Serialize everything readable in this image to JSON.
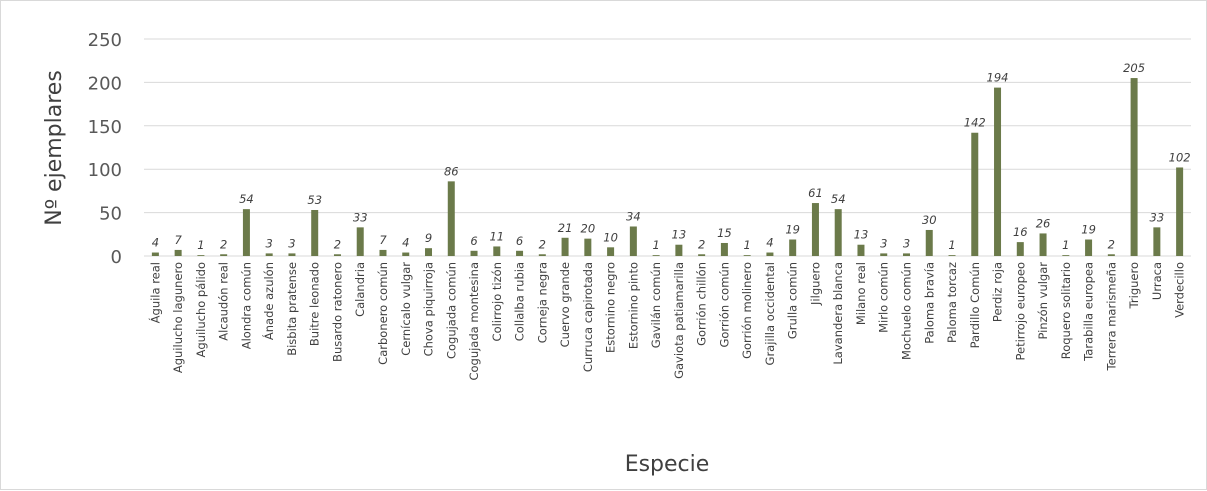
{
  "chart_data": {
    "type": "bar",
    "title": "",
    "xlabel": "Especie",
    "ylabel": "Nº ejemplares",
    "ylim": [
      0,
      250
    ],
    "yticks": [
      0,
      50,
      100,
      150,
      200,
      250
    ],
    "grid": true,
    "legend": "none",
    "bar_color": "#6b7a4a",
    "categories": [
      "Águila real",
      "Aguilucho lagunero",
      "Aguilucho pálido",
      "Alcaudón real",
      "Alondra común",
      "Ánade azulón",
      "Bisbita pratense",
      "Buitre leonado",
      "Busardo ratonero",
      "Calandria",
      "Carbonero común",
      "Cernícalo vulgar",
      "Chova piquirroja",
      "Cogujada común",
      "Cogujada montesina",
      "Colirrojo tizón",
      "Collalba rubia",
      "Corneja negra",
      "Cuervo grande",
      "Curruca capirotada",
      "Estornino negro",
      "Estornino pinto",
      "Gavilán común",
      "Gaviota patiamarilla",
      "Gorrión chillón",
      "Gorrión común",
      "Gorrión molinero",
      "Grajilla occidental",
      "Grulla común",
      "Jilguero",
      "Lavandera blanca",
      "Milano real",
      "Mirlo común",
      "Mochuelo común",
      "Paloma bravía",
      "Paloma torcaz",
      "Pardillo Común",
      "Perdiz roja",
      "Petirrojo europeo",
      "Pinzón vulgar",
      "Roquero solitario",
      "Tarabilla europea",
      "Terrera marismeña",
      "Triguero",
      "Urraca",
      "Verdecillo"
    ],
    "values": [
      4,
      7,
      1,
      2,
      54,
      3,
      3,
      53,
      2,
      33,
      7,
      4,
      9,
      86,
      6,
      11,
      6,
      2,
      21,
      20,
      10,
      34,
      1,
      13,
      2,
      15,
      1,
      4,
      19,
      61,
      54,
      13,
      3,
      3,
      30,
      1,
      142,
      194,
      16,
      26,
      1,
      19,
      2,
      205,
      33,
      102
    ]
  }
}
